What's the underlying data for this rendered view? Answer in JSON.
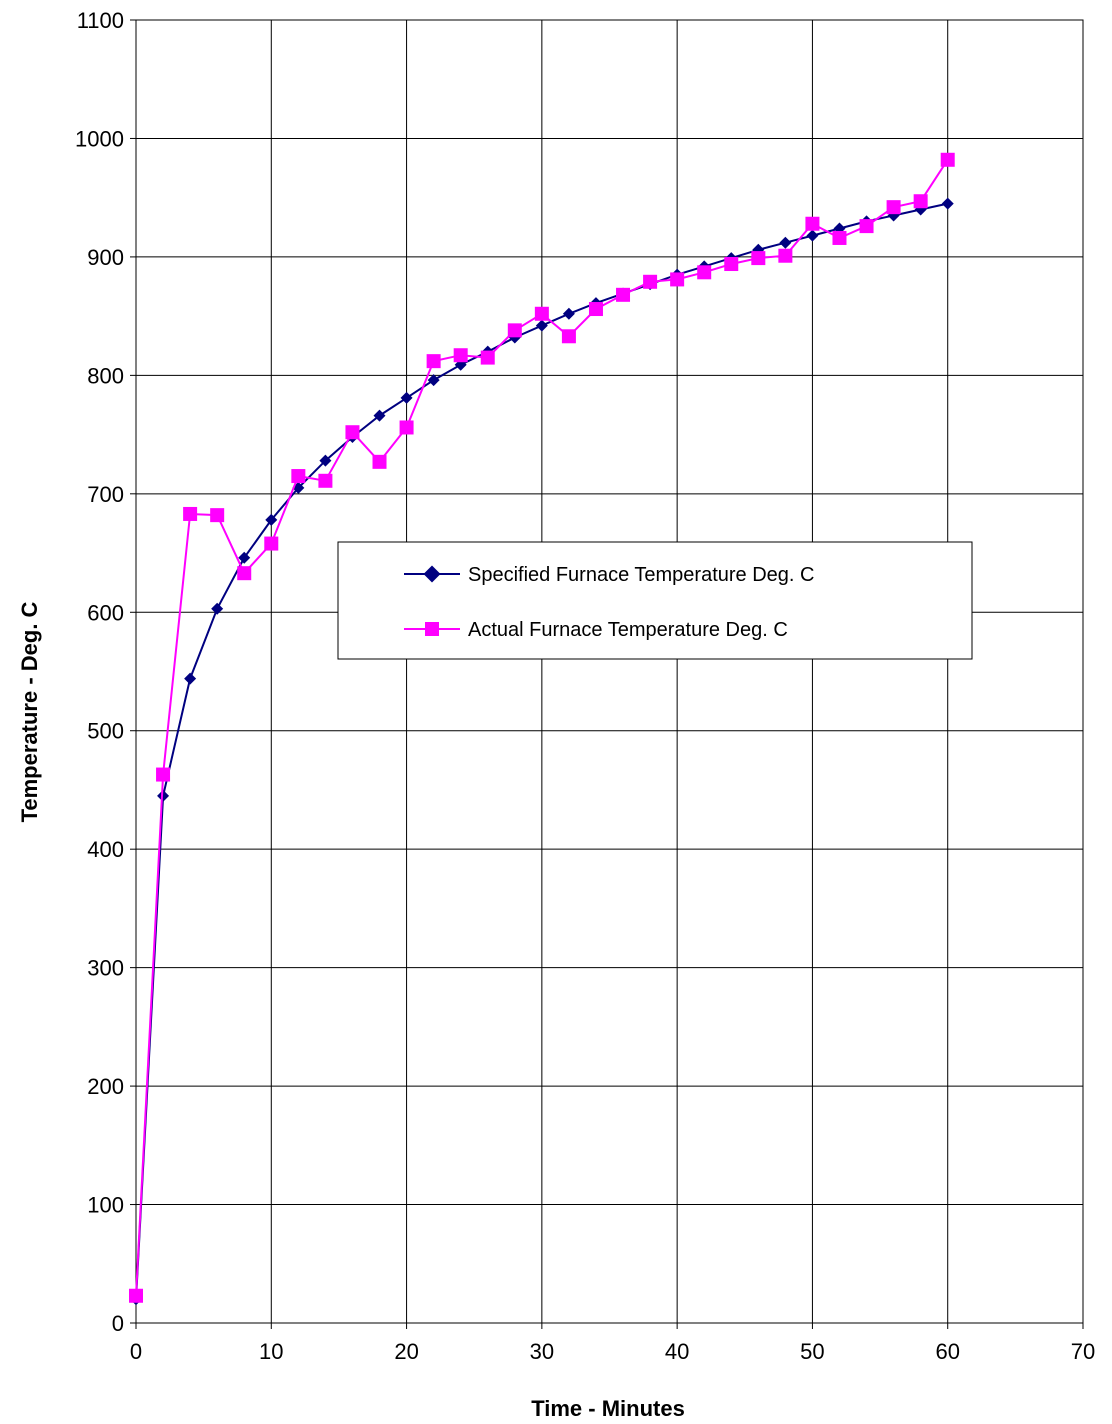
{
  "chart_data": {
    "type": "line",
    "title": "",
    "xlabel": "Time - Minutes",
    "ylabel": "Temperature - Deg. C",
    "xlim": [
      0,
      70
    ],
    "ylim": [
      0,
      1100
    ],
    "xticks": [
      0,
      10,
      20,
      30,
      40,
      50,
      60,
      70
    ],
    "yticks": [
      0,
      100,
      200,
      300,
      400,
      500,
      600,
      700,
      800,
      900,
      1000,
      1100
    ],
    "grid": true,
    "legend_position": "center",
    "series": [
      {
        "name": "Specified Furnace Temperature Deg. C",
        "color": "#000080",
        "marker": "diamond",
        "x": [
          0,
          2,
          4,
          6,
          8,
          10,
          12,
          14,
          16,
          18,
          20,
          22,
          24,
          26,
          28,
          30,
          32,
          34,
          36,
          38,
          40,
          42,
          44,
          46,
          48,
          50,
          52,
          54,
          56,
          58,
          60
        ],
        "y": [
          20,
          445,
          544,
          603,
          646,
          678,
          705,
          728,
          748,
          766,
          781,
          796,
          809,
          820,
          832,
          842,
          852,
          861,
          869,
          877,
          885,
          892,
          899,
          906,
          912,
          918,
          924,
          930,
          935,
          940,
          945
        ]
      },
      {
        "name": "Actual Furnace Temperature Deg. C",
        "color": "#FF00FF",
        "marker": "square",
        "x": [
          0,
          2,
          4,
          6,
          8,
          10,
          12,
          14,
          16,
          18,
          20,
          22,
          24,
          26,
          28,
          30,
          32,
          34,
          36,
          38,
          40,
          42,
          44,
          46,
          48,
          50,
          52,
          54,
          56,
          58,
          60
        ],
        "y": [
          23,
          463,
          683,
          682,
          633,
          658,
          715,
          711,
          752,
          727,
          756,
          812,
          817,
          815,
          838,
          852,
          833,
          856,
          868,
          879,
          881,
          887,
          894,
          899,
          901,
          928,
          916,
          926,
          942,
          947,
          982
        ]
      }
    ]
  }
}
